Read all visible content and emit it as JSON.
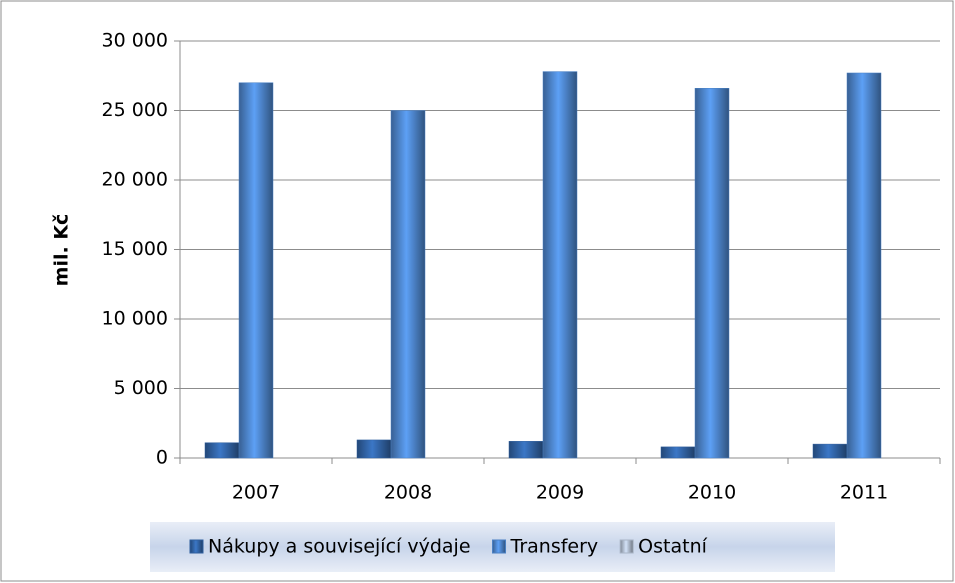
{
  "chart_data": {
    "type": "bar",
    "y_label": "mil. Kč",
    "categories": [
      "2007",
      "2008",
      "2009",
      "2010",
      "2011"
    ],
    "series": [
      {
        "name": "Nákupy a související výdaje",
        "color": "#2f5f9e",
        "values": [
          1100,
          1300,
          1200,
          800,
          1000
        ]
      },
      {
        "name": "Transfery",
        "color": "#4a80c4",
        "values": [
          27000,
          25000,
          27800,
          26600,
          27700
        ]
      },
      {
        "name": "Ostatní",
        "color": "#a9b5c6",
        "values": [
          0,
          0,
          0,
          0,
          0
        ]
      }
    ],
    "ylim": [
      0,
      30000
    ],
    "yticks": [
      {
        "value": 0,
        "label": "0"
      },
      {
        "value": 5000,
        "label": "5 000"
      },
      {
        "value": 10000,
        "label": "10 000"
      },
      {
        "value": 15000,
        "label": "15 000"
      },
      {
        "value": 20000,
        "label": "20 000"
      },
      {
        "value": 25000,
        "label": "25 000"
      },
      {
        "value": 30000,
        "label": "30 000"
      }
    ],
    "grid": true,
    "legend": "bottom"
  }
}
